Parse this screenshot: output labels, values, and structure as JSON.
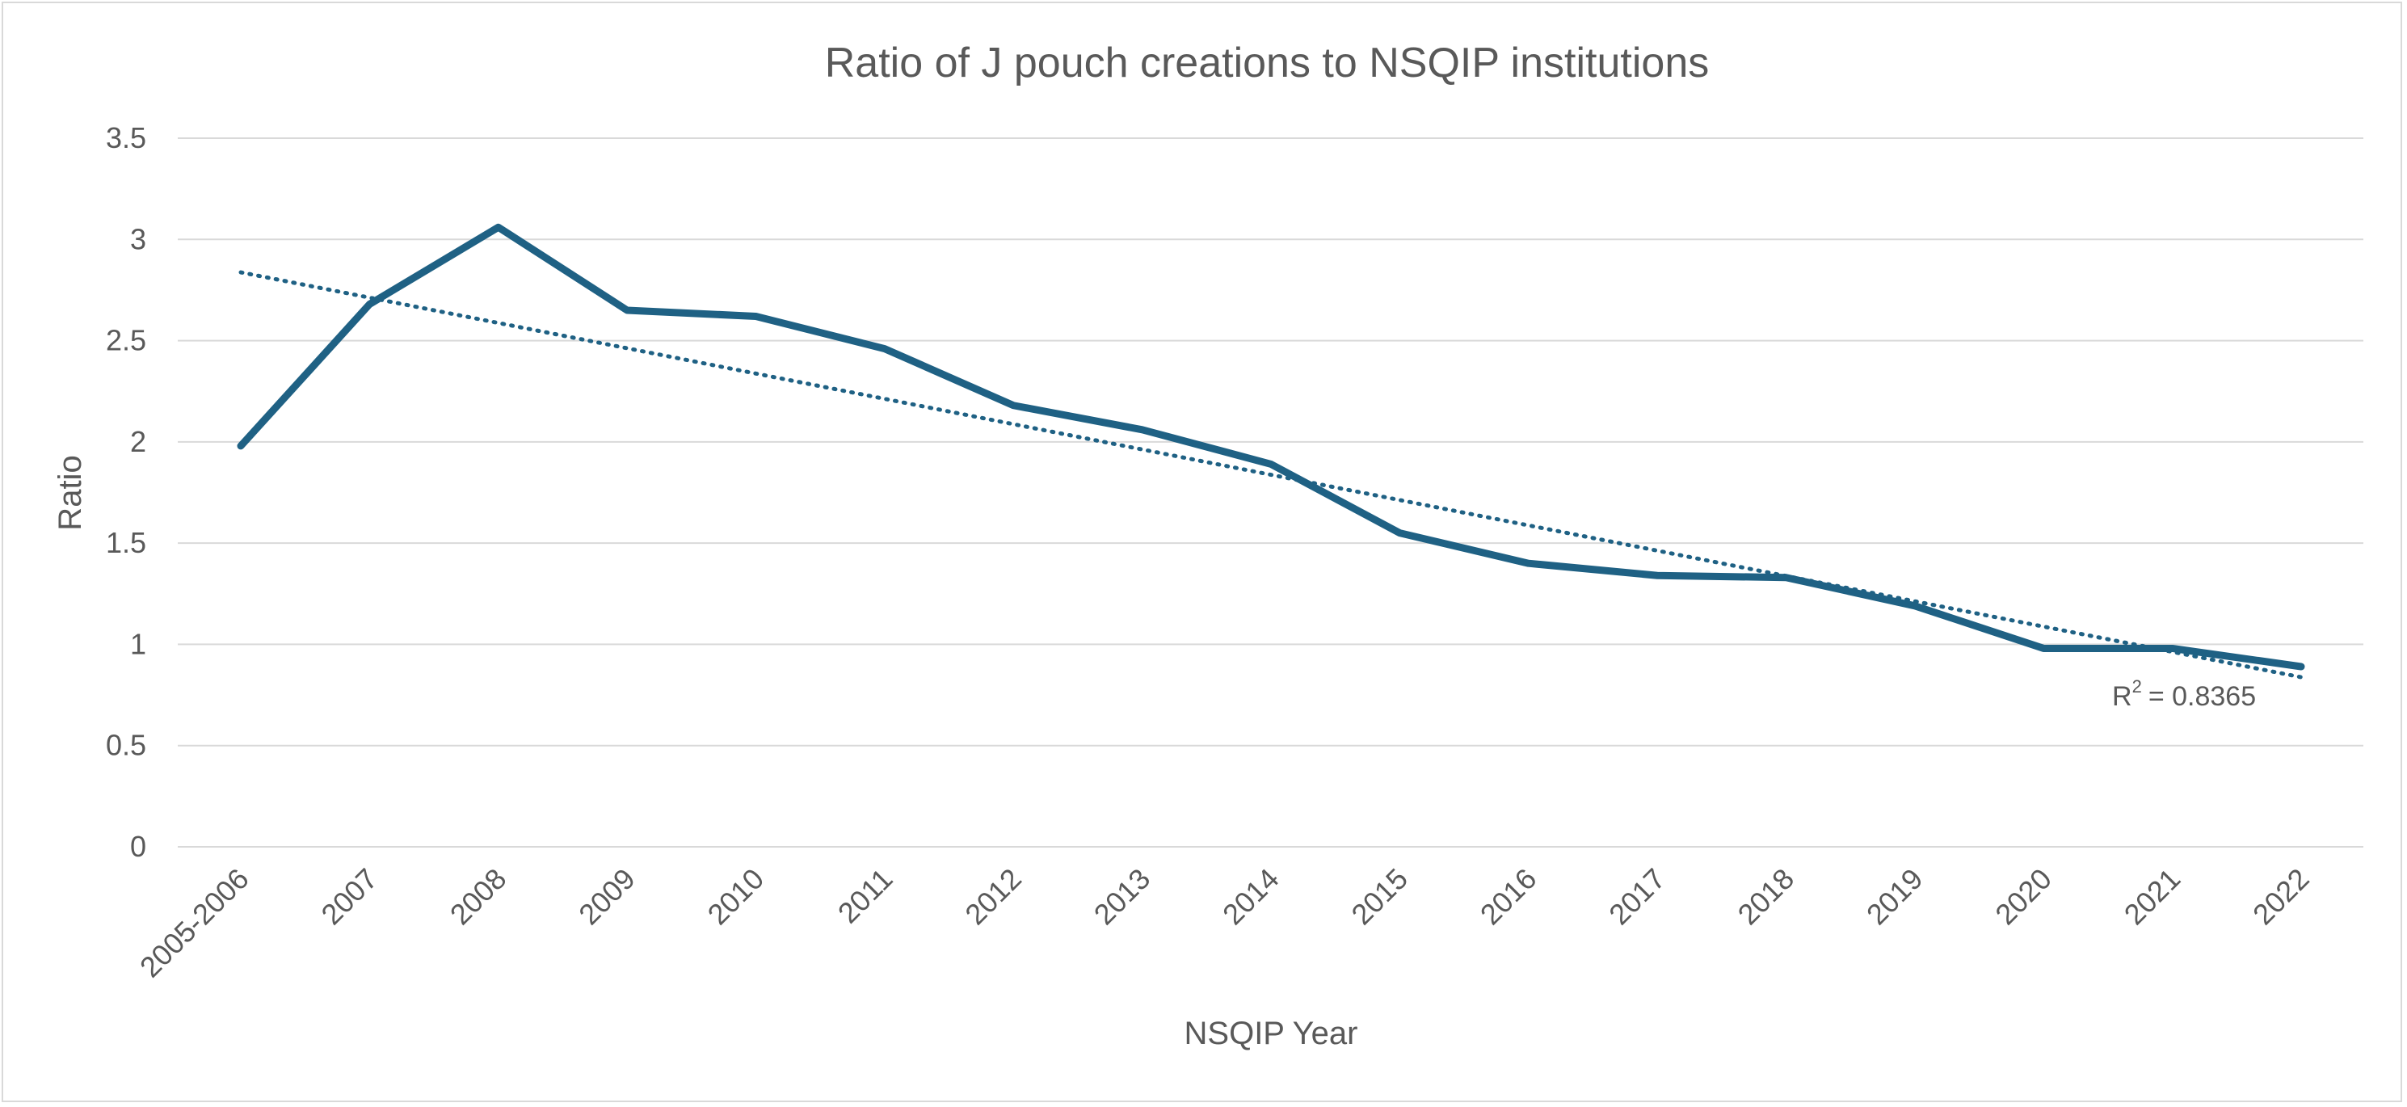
{
  "chart_data": {
    "type": "line",
    "title": "Ratio of J pouch creations to NSQIP institutions",
    "xlabel": "NSQIP Year",
    "ylabel": "Ratio",
    "categories": [
      "2005-2006",
      "2007",
      "2008",
      "2009",
      "2010",
      "2011",
      "2012",
      "2013",
      "2014",
      "2015",
      "2016",
      "2017",
      "2018",
      "2019",
      "2020",
      "2021",
      "2022"
    ],
    "series": [
      {
        "values": [
          1.98,
          2.68,
          3.06,
          2.65,
          2.62,
          2.46,
          2.18,
          2.06,
          1.89,
          1.55,
          1.4,
          1.34,
          1.33,
          1.19,
          0.98,
          0.98,
          0.89
        ],
        "color": "#1f6184"
      }
    ],
    "trendline": {
      "type": "linear",
      "style": "dotted",
      "color": "#1f6184",
      "r_squared_label": "= 0.8365",
      "r_squared_prefix": "R",
      "r_squared_superscript": "2"
    },
    "ylim": [
      0,
      3.5
    ],
    "yticks": [
      "0",
      "0.5",
      "1",
      "1.5",
      "2",
      "2.5",
      "3",
      "3.5"
    ],
    "grid": true,
    "legend": "none",
    "colors": {
      "grid": "#d9d9d9",
      "text": "#595959",
      "border": "#d9d9d9"
    }
  }
}
